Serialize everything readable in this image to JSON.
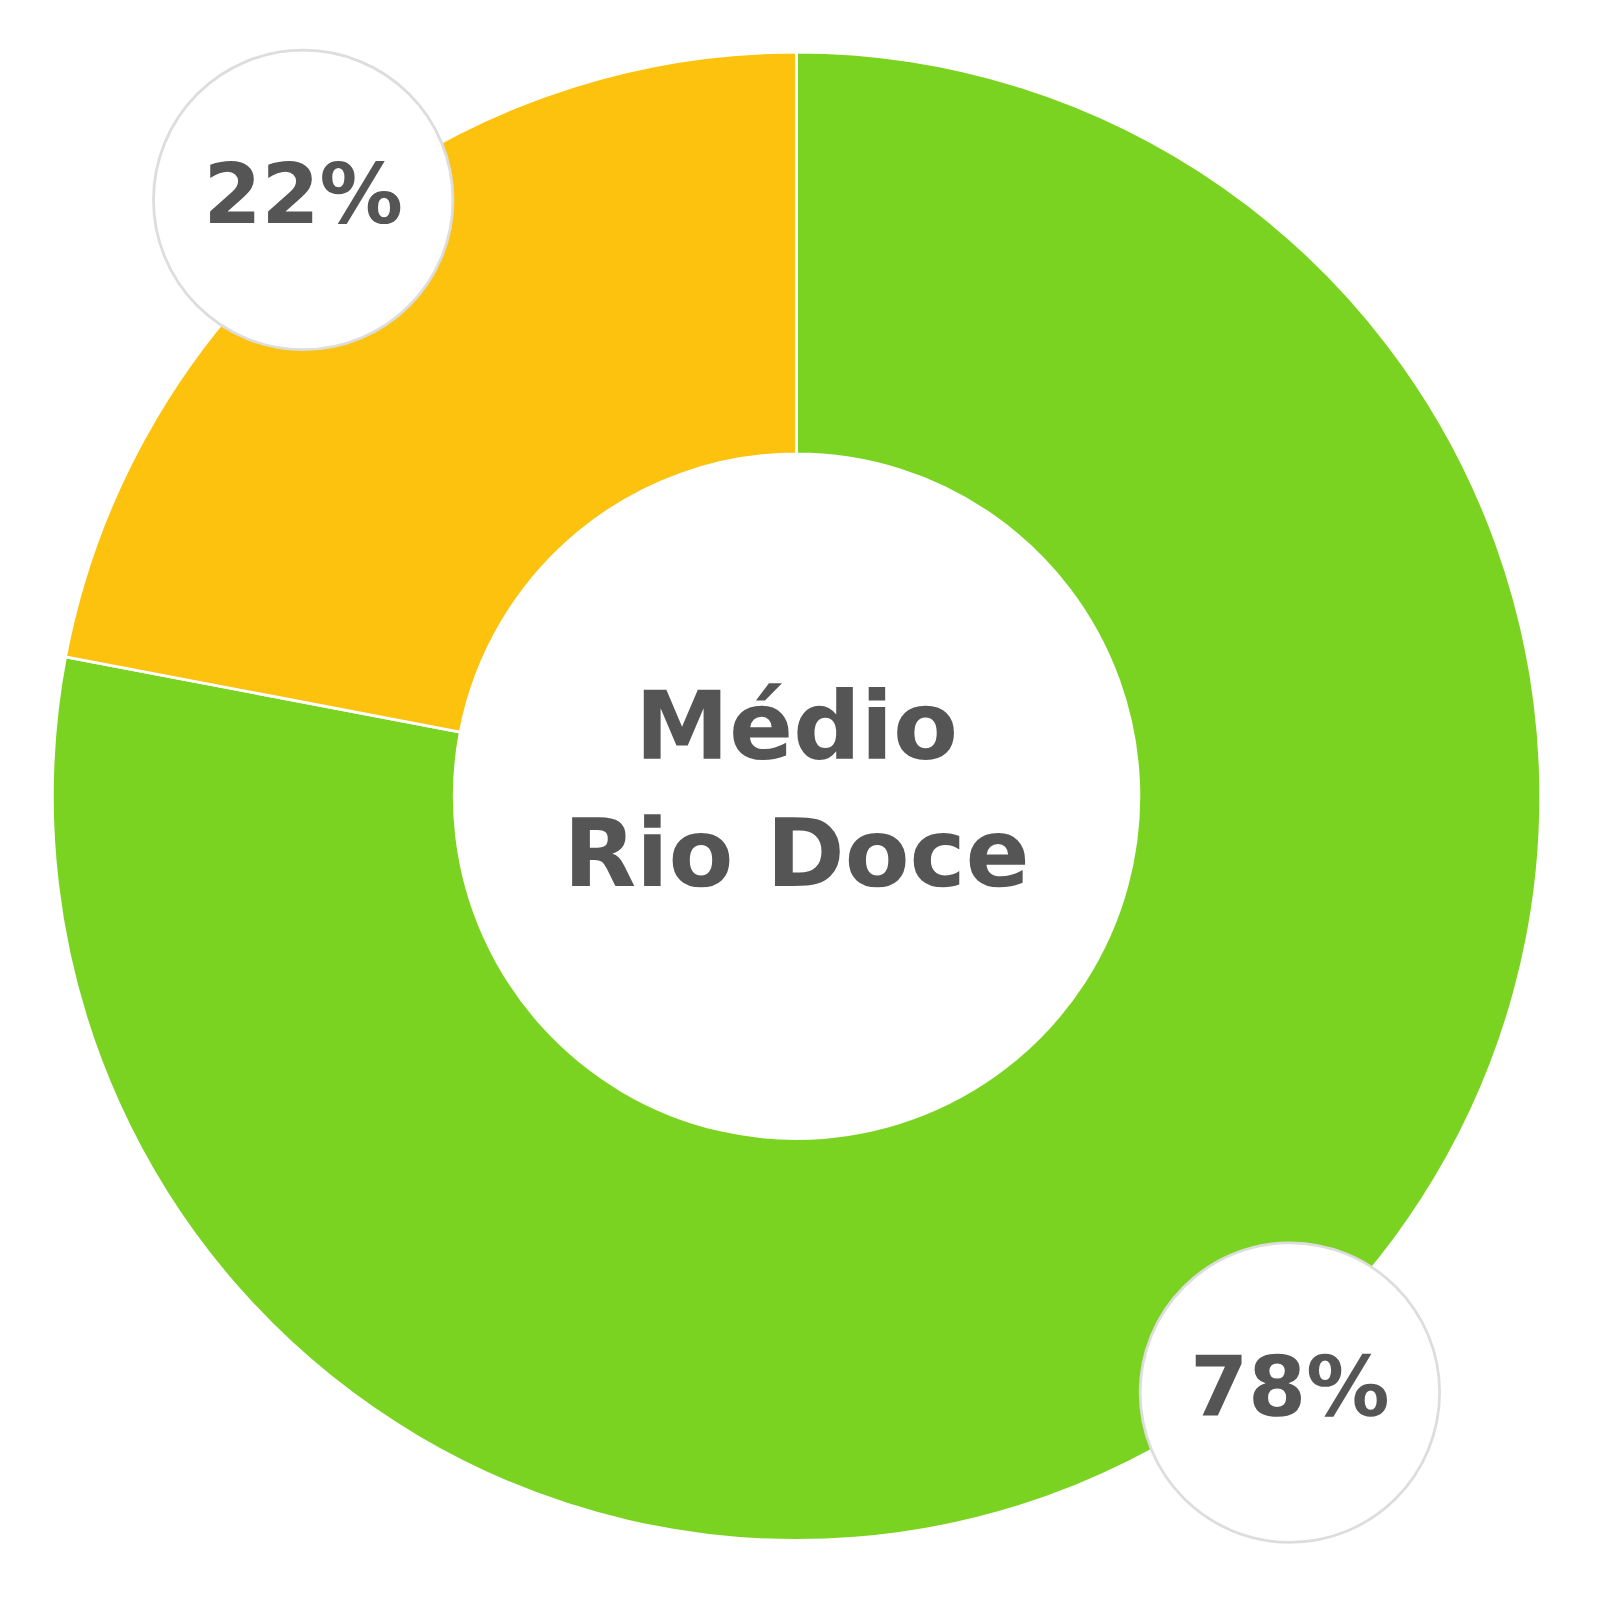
{
  "chart_data": {
    "type": "donut",
    "title": "Médio\nRio Doce",
    "categories": [
      null,
      null
    ],
    "values": [
      78,
      22
    ],
    "colors": [
      "#7bd321",
      "#fdc20e"
    ],
    "value_labels": [
      "78%",
      "22%"
    ],
    "legend": false
  }
}
